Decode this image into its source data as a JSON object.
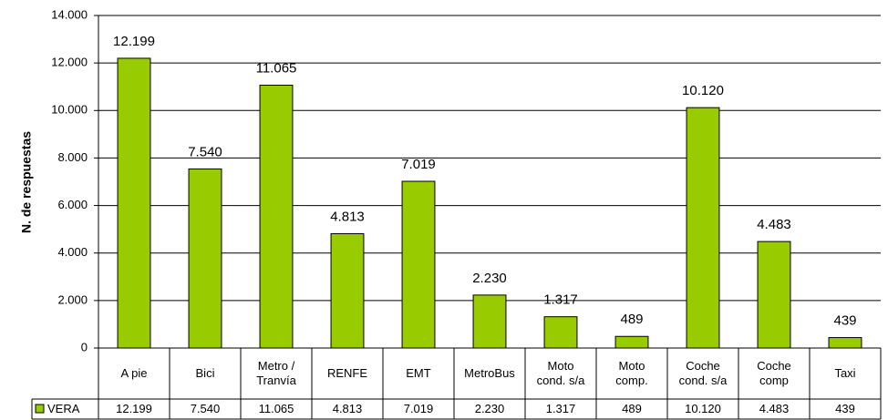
{
  "chart_data": {
    "type": "bar",
    "y_label": "N. de respuestas",
    "categories": [
      "A pie",
      "Bici",
      "Metro /\nTranvía",
      "RENFE",
      "EMT",
      "MetroBus",
      "Moto\ncond. s/a",
      "Moto\ncomp.",
      "Coche\ncond. s/a",
      "Coche\ncomp",
      "Taxi"
    ],
    "series": [
      {
        "name": "VERA",
        "color": "#99cc00",
        "values": [
          12199,
          7540,
          11065,
          4813,
          7019,
          2230,
          1317,
          489,
          10120,
          4483,
          439
        ],
        "value_labels": [
          "12.199",
          "7.540",
          "11.065",
          "4.813",
          "7.019",
          "2.230",
          "1.317",
          "489",
          "10.120",
          "4.483",
          "439"
        ]
      }
    ],
    "ylim": [
      0,
      14000
    ],
    "yticks": [
      {
        "value": 0,
        "label": "0"
      },
      {
        "value": 2000,
        "label": "2.000"
      },
      {
        "value": 4000,
        "label": "4.000"
      },
      {
        "value": 6000,
        "label": "6.000"
      },
      {
        "value": 8000,
        "label": "8.000"
      },
      {
        "value": 10000,
        "label": "10.000"
      },
      {
        "value": 12000,
        "label": "12.000"
      },
      {
        "value": 14000,
        "label": "14.000"
      }
    ],
    "grid": true,
    "data_table": true
  }
}
